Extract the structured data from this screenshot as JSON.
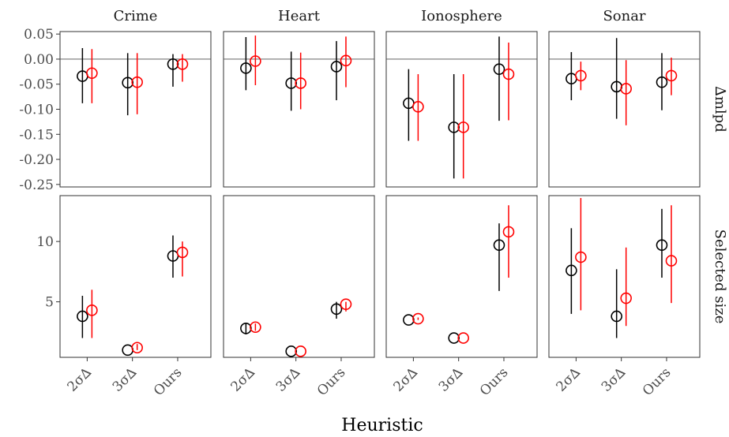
{
  "chart_data": {
    "type": "scatter",
    "subtype": "faceted point-range (estimate with error bar)",
    "xlabel": "Heuristic",
    "categories": [
      "2σ∆",
      "3σ∆",
      "Ours"
    ],
    "columns": [
      "Crime",
      "Heart",
      "Ionosphere",
      "Sonar"
    ],
    "rows": [
      {
        "label": "∆mlpd",
        "ylim": [
          -0.255,
          0.055
        ],
        "ticks": [
          "0.05",
          "0.00",
          "-0.05",
          "-0.10",
          "-0.15",
          "-0.20",
          "-0.25"
        ],
        "tick_values": [
          0.05,
          0.0,
          -0.05,
          -0.1,
          -0.15,
          -0.2,
          -0.25
        ],
        "zero_line": true
      },
      {
        "label": "Selected size",
        "ylim": [
          0.4,
          13.8
        ],
        "ticks": [
          "5",
          "10"
        ],
        "tick_values": [
          5,
          10
        ],
        "zero_line": false
      }
    ],
    "series_colors": [
      "#000000",
      "#ff0000"
    ],
    "panels": [
      {
        "row": 0,
        "col": 0,
        "points": [
          [
            [
              -0.034,
              -0.088,
              0.022
            ],
            [
              -0.028,
              -0.088,
              0.02
            ]
          ],
          [
            [
              -0.047,
              -0.112,
              0.012
            ],
            [
              -0.046,
              -0.11,
              0.012
            ]
          ],
          [
            [
              -0.01,
              -0.055,
              0.01
            ],
            [
              -0.01,
              -0.045,
              0.01
            ]
          ]
        ]
      },
      {
        "row": 0,
        "col": 1,
        "points": [
          [
            [
              -0.018,
              -0.062,
              0.044
            ],
            [
              -0.004,
              -0.052,
              0.047
            ]
          ],
          [
            [
              -0.048,
              -0.103,
              0.015
            ],
            [
              -0.048,
              -0.1,
              0.013
            ]
          ],
          [
            [
              -0.015,
              -0.082,
              0.036
            ],
            [
              -0.003,
              -0.056,
              0.045
            ]
          ]
        ]
      },
      {
        "row": 0,
        "col": 2,
        "points": [
          [
            [
              -0.088,
              -0.163,
              -0.02
            ],
            [
              -0.095,
              -0.163,
              -0.03
            ]
          ],
          [
            [
              -0.136,
              -0.238,
              -0.03
            ],
            [
              -0.136,
              -0.238,
              -0.03
            ]
          ],
          [
            [
              -0.02,
              -0.123,
              0.045
            ],
            [
              -0.03,
              -0.122,
              0.033
            ]
          ]
        ]
      },
      {
        "row": 0,
        "col": 3,
        "points": [
          [
            [
              -0.039,
              -0.082,
              0.014
            ],
            [
              -0.033,
              -0.062,
              -0.005
            ]
          ],
          [
            [
              -0.055,
              -0.119,
              0.042
            ],
            [
              -0.059,
              -0.132,
              -0.002
            ]
          ],
          [
            [
              -0.046,
              -0.102,
              0.012
            ],
            [
              -0.033,
              -0.072,
              0.003
            ]
          ]
        ]
      },
      {
        "row": 1,
        "col": 0,
        "points": [
          [
            [
              3.8,
              2.0,
              5.5
            ],
            [
              4.3,
              2.0,
              6.0
            ]
          ],
          [
            [
              1.0,
              1.0,
              1.0
            ],
            [
              1.2,
              1.0,
              1.5
            ]
          ],
          [
            [
              8.8,
              7.0,
              10.5
            ],
            [
              9.1,
              7.1,
              10.0
            ]
          ]
        ]
      },
      {
        "row": 1,
        "col": 1,
        "points": [
          [
            [
              2.8,
              2.3,
              3.2
            ],
            [
              2.9,
              2.6,
              3.2
            ]
          ],
          [
            [
              0.9,
              0.9,
              0.9
            ],
            [
              0.9,
              0.9,
              0.9
            ]
          ],
          [
            [
              4.4,
              3.6,
              5.0
            ],
            [
              4.8,
              4.2,
              5.0
            ]
          ]
        ]
      },
      {
        "row": 1,
        "col": 2,
        "points": [
          [
            [
              3.5,
              3.5,
              3.5
            ],
            [
              3.6,
              3.5,
              3.7
            ]
          ],
          [
            [
              2.0,
              2.0,
              2.0
            ],
            [
              2.0,
              2.0,
              2.0
            ]
          ],
          [
            [
              9.7,
              5.9,
              11.5
            ],
            [
              10.8,
              7.0,
              13.0
            ]
          ]
        ]
      },
      {
        "row": 1,
        "col": 3,
        "points": [
          [
            [
              7.6,
              4.0,
              11.1
            ],
            [
              8.7,
              4.3,
              13.6
            ]
          ],
          [
            [
              3.8,
              2.0,
              7.7
            ],
            [
              5.3,
              3.0,
              9.5
            ]
          ],
          [
            [
              9.7,
              7.0,
              12.7
            ],
            [
              8.4,
              4.9,
              13.0
            ]
          ]
        ]
      }
    ]
  }
}
